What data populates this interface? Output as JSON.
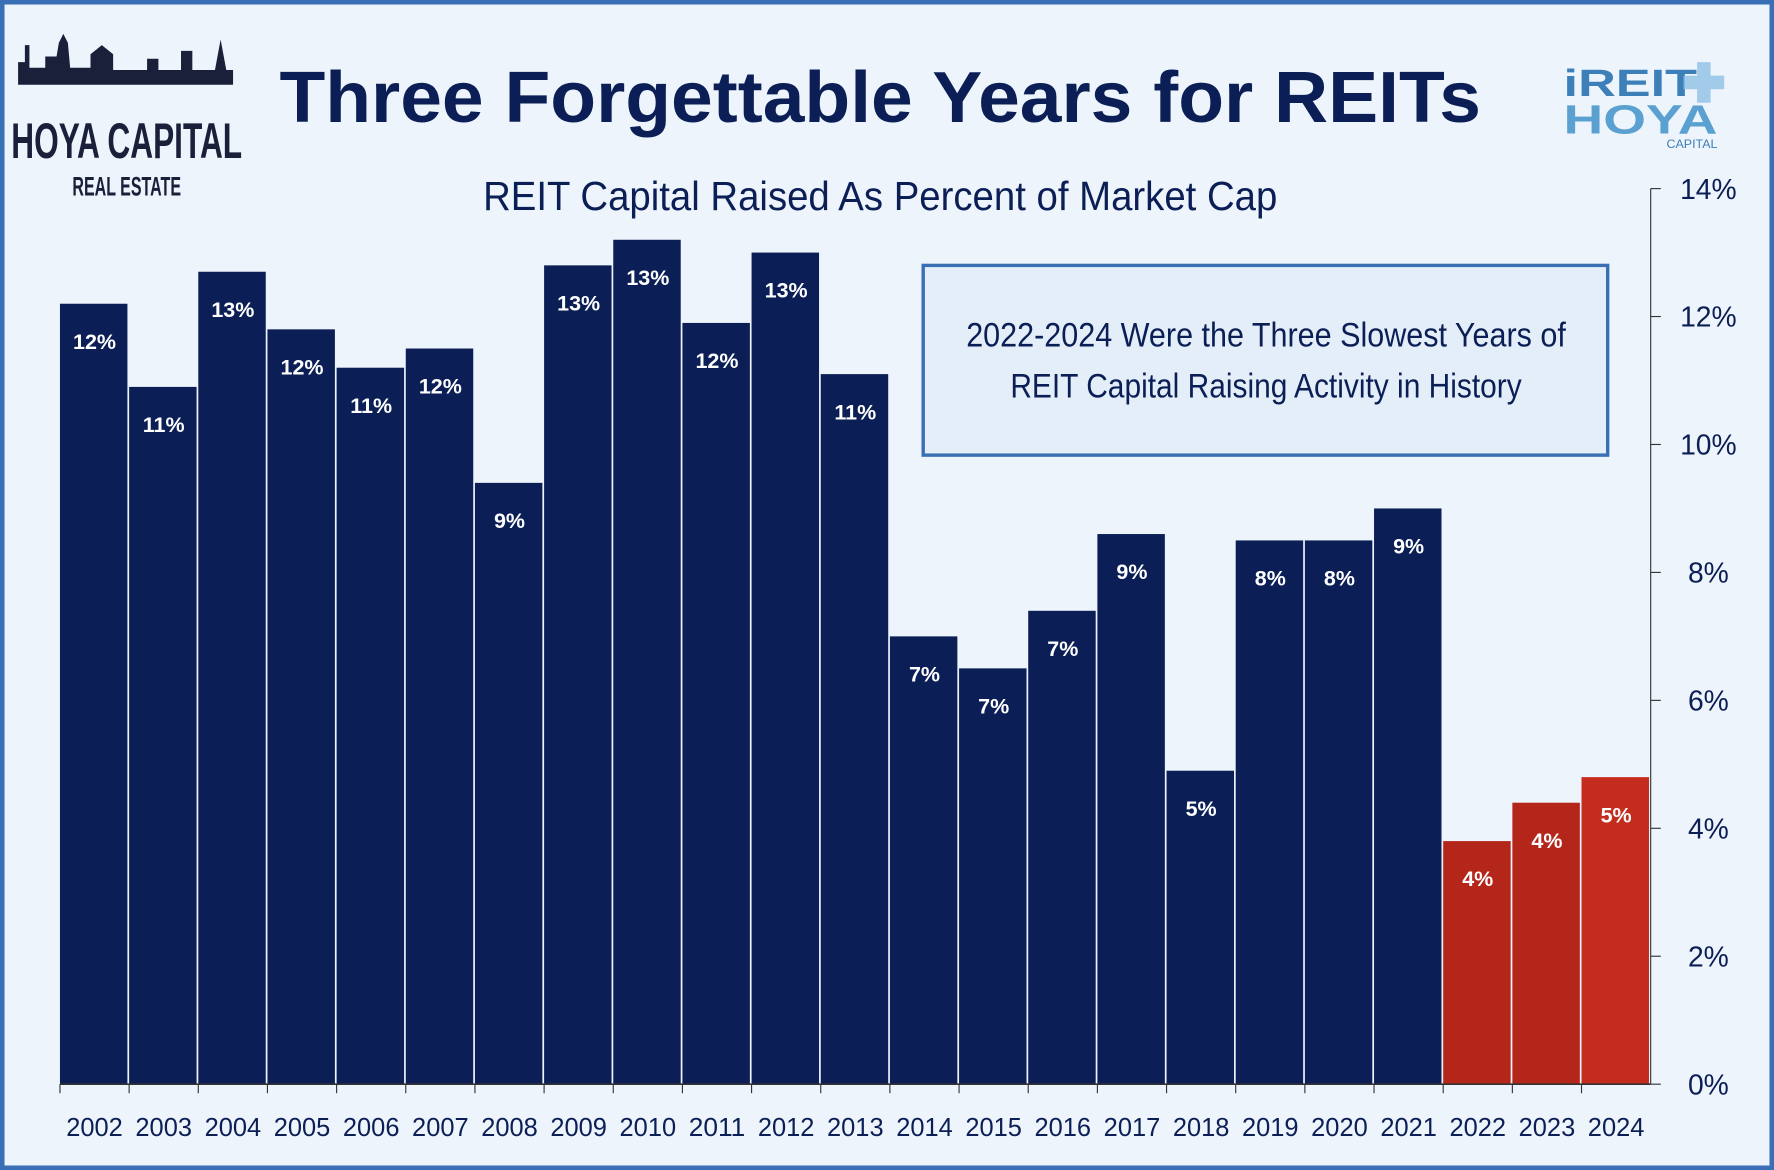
{
  "logos": {
    "left": {
      "line1": "HOYA CAPITAL",
      "line2": "REAL ESTATE"
    },
    "right": {
      "line1": "iREIT",
      "line2": "HOYA",
      "line3": "CAPITAL"
    }
  },
  "colors": {
    "background": "#eef4fb",
    "border": "#3a6fb5",
    "navy": "#0b1f56",
    "red": "#b5261a",
    "text": "#0b1f56"
  },
  "chart_data": {
    "type": "bar",
    "title": "Three Forgettable Years for REITs",
    "subtitle": "REIT Capital Raised As Percent of Market Cap",
    "annotation": {
      "line1": "2022-2024 Were the Three Slowest Years of",
      "line2": "REIT Capital Raising Activity in History"
    },
    "categories": [
      "2002",
      "2003",
      "2004",
      "2005",
      "2006",
      "2007",
      "2008",
      "2009",
      "2010",
      "2011",
      "2012",
      "2013",
      "2014",
      "2015",
      "2016",
      "2017",
      "2018",
      "2019",
      "2020",
      "2021",
      "2022",
      "2023",
      "2024"
    ],
    "values": [
      12.2,
      10.9,
      12.7,
      11.8,
      11.2,
      11.5,
      9.4,
      12.8,
      13.2,
      11.9,
      13.0,
      11.1,
      7.0,
      6.5,
      7.4,
      8.6,
      4.9,
      8.5,
      8.5,
      9.0,
      3.8,
      4.4,
      4.8
    ],
    "data_labels": [
      "12%",
      "11%",
      "13%",
      "12%",
      "11%",
      "12%",
      "9%",
      "13%",
      "13%",
      "12%",
      "13%",
      "11%",
      "7%",
      "7%",
      "7%",
      "9%",
      "5%",
      "8%",
      "8%",
      "9%",
      "4%",
      "4%",
      "5%"
    ],
    "highlighted": [
      "2022",
      "2023",
      "2024"
    ],
    "y_axis": {
      "position": "right",
      "ylim": [
        0,
        14
      ],
      "ticks": [
        "0%",
        "2%",
        "4%",
        "6%",
        "8%",
        "10%",
        "12%",
        "14%"
      ]
    },
    "xlabel": "",
    "ylabel": "",
    "grid": false,
    "legend": "none"
  }
}
